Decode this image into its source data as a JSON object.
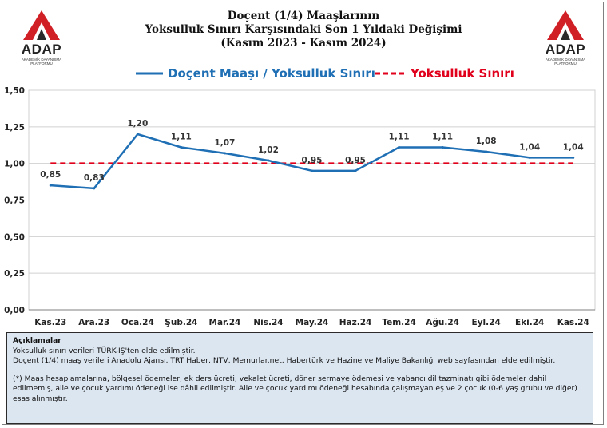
{
  "header": {
    "title_line1": "Doçent (1/4) Maaşlarının",
    "title_line2": "Yoksulluk Sınırı Karşısındaki Son 1 Yıldaki Değişimi",
    "title_line3": "(Kasım 2023 - Kasım 2024)"
  },
  "logo": {
    "name": "ADAP",
    "subtitle_line1": "AKADEMİK DAYANIŞMA",
    "subtitle_line2": "PLATFORMU"
  },
  "colors": {
    "series": "#1f6fb5",
    "threshold": "#e0001b",
    "logo_red": "#d11f26",
    "logo_dark": "#2a2a2a"
  },
  "chart_data": {
    "type": "line",
    "title": "Doçent (1/4) Maaşlarının Yoksulluk Sınırı Karşısındaki Son 1 Yıldaki Değişimi (Kasım 2023 - Kasım 2024)",
    "xlabel": "",
    "ylabel": "",
    "ylim": [
      0,
      1.5
    ],
    "yticks": [
      "0,00",
      "0,25",
      "0,50",
      "0,75",
      "1,00",
      "1,25",
      "1,50"
    ],
    "grid": true,
    "legend_position": "top",
    "categories": [
      "Kas.23",
      "Ara.23",
      "Oca.24",
      "Şub.24",
      "Mar.24",
      "Nis.24",
      "May.24",
      "Haz.24",
      "Tem.24",
      "Ağu.24",
      "Eyl.24",
      "Eki.24",
      "Kas.24"
    ],
    "series": [
      {
        "name": "Doçent Maaşı / Yoksulluk Sınırı",
        "style": "solid",
        "values": [
          0.85,
          0.83,
          1.2,
          1.11,
          1.07,
          1.02,
          0.95,
          0.95,
          1.11,
          1.11,
          1.08,
          1.04,
          1.04
        ],
        "labels": [
          "0,85",
          "0,83",
          "1,20",
          "1,11",
          "1,07",
          "1,02",
          "0,95",
          "0,95",
          "1,11",
          "1,11",
          "1,08",
          "1,04",
          "1,04"
        ]
      },
      {
        "name": "Yoksulluk Sınırı",
        "style": "dashed",
        "values": [
          1,
          1,
          1,
          1,
          1,
          1,
          1,
          1,
          1,
          1,
          1,
          1,
          1
        ]
      }
    ]
  },
  "notes": {
    "heading": "Açıklamalar",
    "line1": "Yoksulluk sınırı verileri TÜRK-İŞ'ten elde edilmiştir.",
    "line2": "Doçent (1/4) maaş verileri Anadolu Ajansı, TRT Haber, NTV, Memurlar.net, Habertürk ve Hazine ve Maliye Bakanlığı web sayfasından elde edilmiştir.",
    "footnote": "(*) Maaş hesaplamalarına, bölgesel ödemeler, ek ders ücreti, vekalet ücreti, döner sermaye ödemesi ve yabancı dil tazminatı gibi ödemeler dahil edilmemiş, aile ve çocuk yardımı ödeneği ise dâhil edilmiştir. Aile ve çocuk yardımı ödeneği hesabında çalışmayan eş ve 2 çocuk (0-6 yaş grubu ve diğer) esas alınmıştır."
  }
}
